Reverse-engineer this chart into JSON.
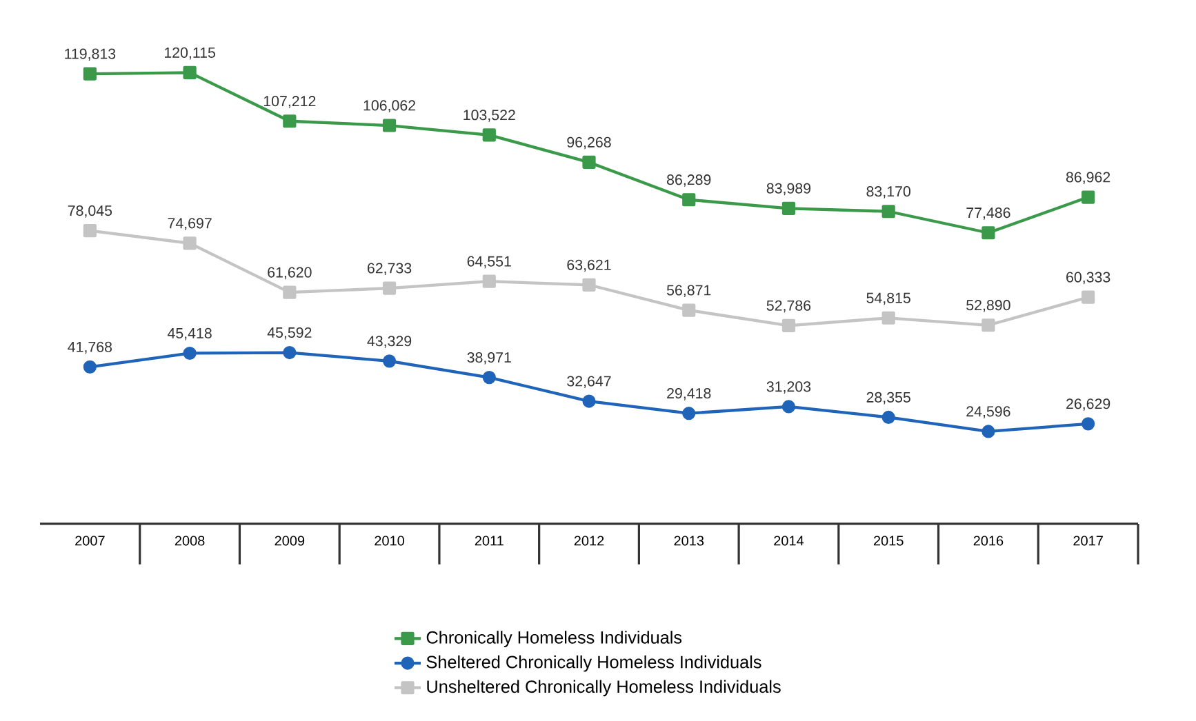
{
  "chart_data": {
    "type": "line",
    "categories": [
      "2007",
      "2008",
      "2009",
      "2010",
      "2011",
      "2012",
      "2013",
      "2014",
      "2015",
      "2016",
      "2017"
    ],
    "tick_labels": "x",
    "legend": "bottom",
    "grid": false,
    "line_style": "solid",
    "series": [
      {
        "name": "Chronically Homeless Individuals",
        "color": "#3a9a4a",
        "marker": "square",
        "values": [
          119813,
          120115,
          107212,
          106062,
          103522,
          96268,
          86289,
          83989,
          83170,
          77486,
          86962
        ],
        "value_labels": [
          "119,813",
          "120,115",
          "107,212",
          "106,062",
          "103,522",
          "96,268",
          "86,289",
          "83,989",
          "83,170",
          "77,486",
          "86,962"
        ]
      },
      {
        "name": "Sheltered Chronically Homeless Individuals",
        "color": "#1f64b8",
        "marker": "circle",
        "values": [
          41768,
          45418,
          45592,
          43329,
          38971,
          32647,
          29418,
          31203,
          28355,
          24596,
          26629
        ],
        "value_labels": [
          "41,768",
          "45,418",
          "45,592",
          "43,329",
          "38,971",
          "32,647",
          "29,418",
          "31,203",
          "28,355",
          "24,596",
          "26,629"
        ]
      },
      {
        "name": "Unsheltered Chronically Homeless Individuals",
        "color": "#c4c4c4",
        "marker": "square",
        "values": [
          78045,
          74697,
          61620,
          62733,
          64551,
          63621,
          56871,
          52786,
          54815,
          52890,
          60333
        ],
        "value_labels": [
          "78,045",
          "74,697",
          "61,620",
          "62,733",
          "64,551",
          "63,621",
          "56,871",
          "52,786",
          "54,815",
          "52,890",
          "60,333"
        ]
      }
    ]
  }
}
